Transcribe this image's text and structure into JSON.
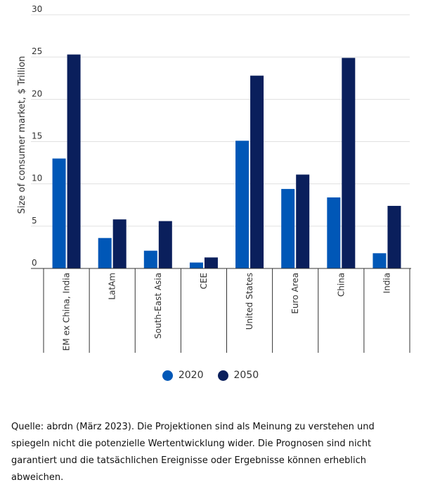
{
  "chart_data": {
    "type": "bar",
    "categories": [
      "EM ex China, India",
      "LatAm",
      "South-East Asia",
      "CEE",
      "United States",
      "Euro Area",
      "China",
      "India"
    ],
    "series": [
      {
        "name": "2020",
        "color": "#0057b7",
        "values": [
          13.0,
          3.6,
          2.1,
          0.7,
          15.1,
          9.4,
          8.4,
          1.8
        ]
      },
      {
        "name": "2050",
        "color": "#0a1f5c",
        "values": [
          25.3,
          5.8,
          5.6,
          1.3,
          22.8,
          11.1,
          24.9,
          7.4
        ]
      }
    ],
    "ylabel": "Size of consumer market, $ Trillion",
    "yticks": [
      0,
      5,
      10,
      15,
      20,
      25,
      30
    ],
    "ylim": [
      0,
      30
    ],
    "grid": true,
    "legend_position": "bottom-center"
  },
  "source_note": "Quelle: abrdn (März 2023). Die Projektionen sind als Meinung zu verstehen und spiegeln nicht die potenzielle Wertentwicklung wider. Die Prognosen sind nicht garantiert und die tatsächlichen Ereignisse oder Ergebnisse können erheblich abweichen."
}
